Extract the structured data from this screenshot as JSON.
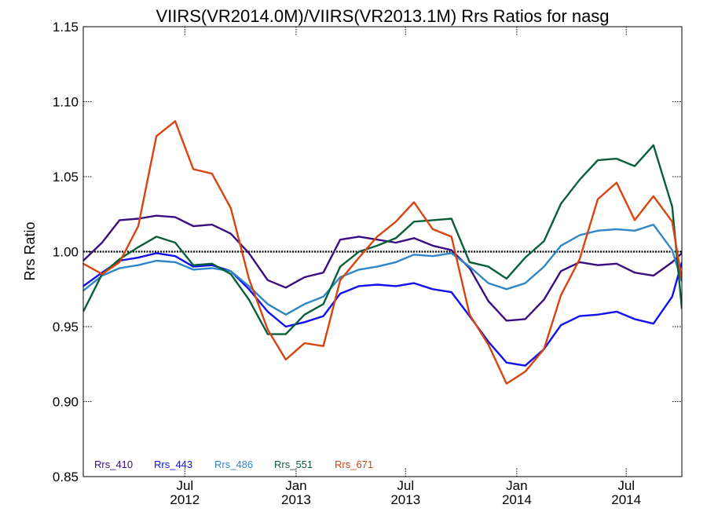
{
  "chart_data": {
    "type": "line",
    "title": "VIIRS(VR2014.0M)/VIIRS(VR2013.1M)  Rrs Ratios for nasg",
    "ylabel": "Rrs Ratio",
    "xlabel": "",
    "ylim": [
      0.85,
      1.15
    ],
    "yticks": [
      "0.85",
      "0.90",
      "0.95",
      "1.00",
      "1.05",
      "1.10",
      "1.15"
    ],
    "xlim": [
      "2012-01-15",
      "2014-10-01"
    ],
    "xticks": [
      {
        "date": "2012-07-01",
        "line1": "Jul",
        "line2": "2012"
      },
      {
        "date": "2013-01-01",
        "line1": "Jan",
        "line2": "2013"
      },
      {
        "date": "2013-07-01",
        "line1": "Jul",
        "line2": "2013"
      },
      {
        "date": "2014-01-01",
        "line1": "Jan",
        "line2": "2014"
      },
      {
        "date": "2014-07-01",
        "line1": "Jul",
        "line2": "2014"
      }
    ],
    "reference_line": 1.0,
    "x": [
      "2012-01-15",
      "2012-02-15",
      "2012-03-15",
      "2012-04-15",
      "2012-05-15",
      "2012-06-15",
      "2012-07-15",
      "2012-08-15",
      "2012-09-15",
      "2012-10-15",
      "2012-11-15",
      "2012-12-15",
      "2013-01-15",
      "2013-02-15",
      "2013-03-15",
      "2013-04-15",
      "2013-05-15",
      "2013-06-15",
      "2013-07-15",
      "2013-08-15",
      "2013-09-15",
      "2013-10-15",
      "2013-11-15",
      "2013-12-15",
      "2014-01-15",
      "2014-02-15",
      "2014-03-15",
      "2014-04-15",
      "2014-05-15",
      "2014-06-15",
      "2014-07-15",
      "2014-08-15",
      "2014-09-15",
      "2014-10-01"
    ],
    "series": [
      {
        "name": "Rrs_410",
        "color": "#3a0e80",
        "values": [
          0.994,
          1.006,
          1.021,
          1.022,
          1.024,
          1.023,
          1.017,
          1.018,
          1.012,
          0.999,
          0.981,
          0.976,
          0.983,
          0.986,
          1.008,
          1.01,
          1.008,
          1.006,
          1.009,
          1.004,
          1.001,
          0.989,
          0.967,
          0.954,
          0.955,
          0.968,
          0.987,
          0.993,
          0.991,
          0.992,
          0.986,
          0.984,
          0.993,
          0.999
        ]
      },
      {
        "name": "Rrs_443",
        "color": "#1010f0",
        "values": [
          0.977,
          0.986,
          0.994,
          0.996,
          0.999,
          0.997,
          0.99,
          0.991,
          0.987,
          0.975,
          0.96,
          0.95,
          0.953,
          0.957,
          0.972,
          0.977,
          0.978,
          0.977,
          0.979,
          0.975,
          0.973,
          0.957,
          0.94,
          0.926,
          0.924,
          0.935,
          0.951,
          0.957,
          0.958,
          0.96,
          0.955,
          0.952,
          0.97,
          0.993
        ]
      },
      {
        "name": "Rrs_486",
        "color": "#2e86c8",
        "values": [
          0.974,
          0.984,
          0.989,
          0.991,
          0.994,
          0.993,
          0.988,
          0.989,
          0.987,
          0.977,
          0.965,
          0.958,
          0.965,
          0.97,
          0.983,
          0.988,
          0.99,
          0.993,
          0.998,
          0.997,
          0.999,
          0.99,
          0.979,
          0.975,
          0.979,
          0.99,
          1.004,
          1.011,
          1.014,
          1.015,
          1.014,
          1.018,
          1.001,
          0.98
        ]
      },
      {
        "name": "Rrs_551",
        "color": "#0a5f3a",
        "values": [
          0.96,
          0.985,
          0.995,
          1.003,
          1.01,
          1.006,
          0.991,
          0.992,
          0.985,
          0.968,
          0.945,
          0.945,
          0.958,
          0.965,
          0.99,
          1.0,
          1.004,
          1.009,
          1.02,
          1.021,
          1.022,
          0.993,
          0.99,
          0.982,
          0.996,
          1.007,
          1.032,
          1.048,
          1.061,
          1.062,
          1.057,
          1.071,
          1.03,
          0.962
        ]
      },
      {
        "name": "Rrs_671",
        "color": "#d9430f",
        "values": [
          0.992,
          0.985,
          0.993,
          1.017,
          1.077,
          1.087,
          1.055,
          1.052,
          1.029,
          0.982,
          0.948,
          0.928,
          0.939,
          0.937,
          0.981,
          0.996,
          1.01,
          1.02,
          1.033,
          1.015,
          1.01,
          0.958,
          0.938,
          0.912,
          0.92,
          0.935,
          0.971,
          0.995,
          1.035,
          1.046,
          1.021,
          1.037,
          1.02,
          0.981
        ]
      }
    ],
    "legend_position": "bottom-left",
    "grid": false
  }
}
